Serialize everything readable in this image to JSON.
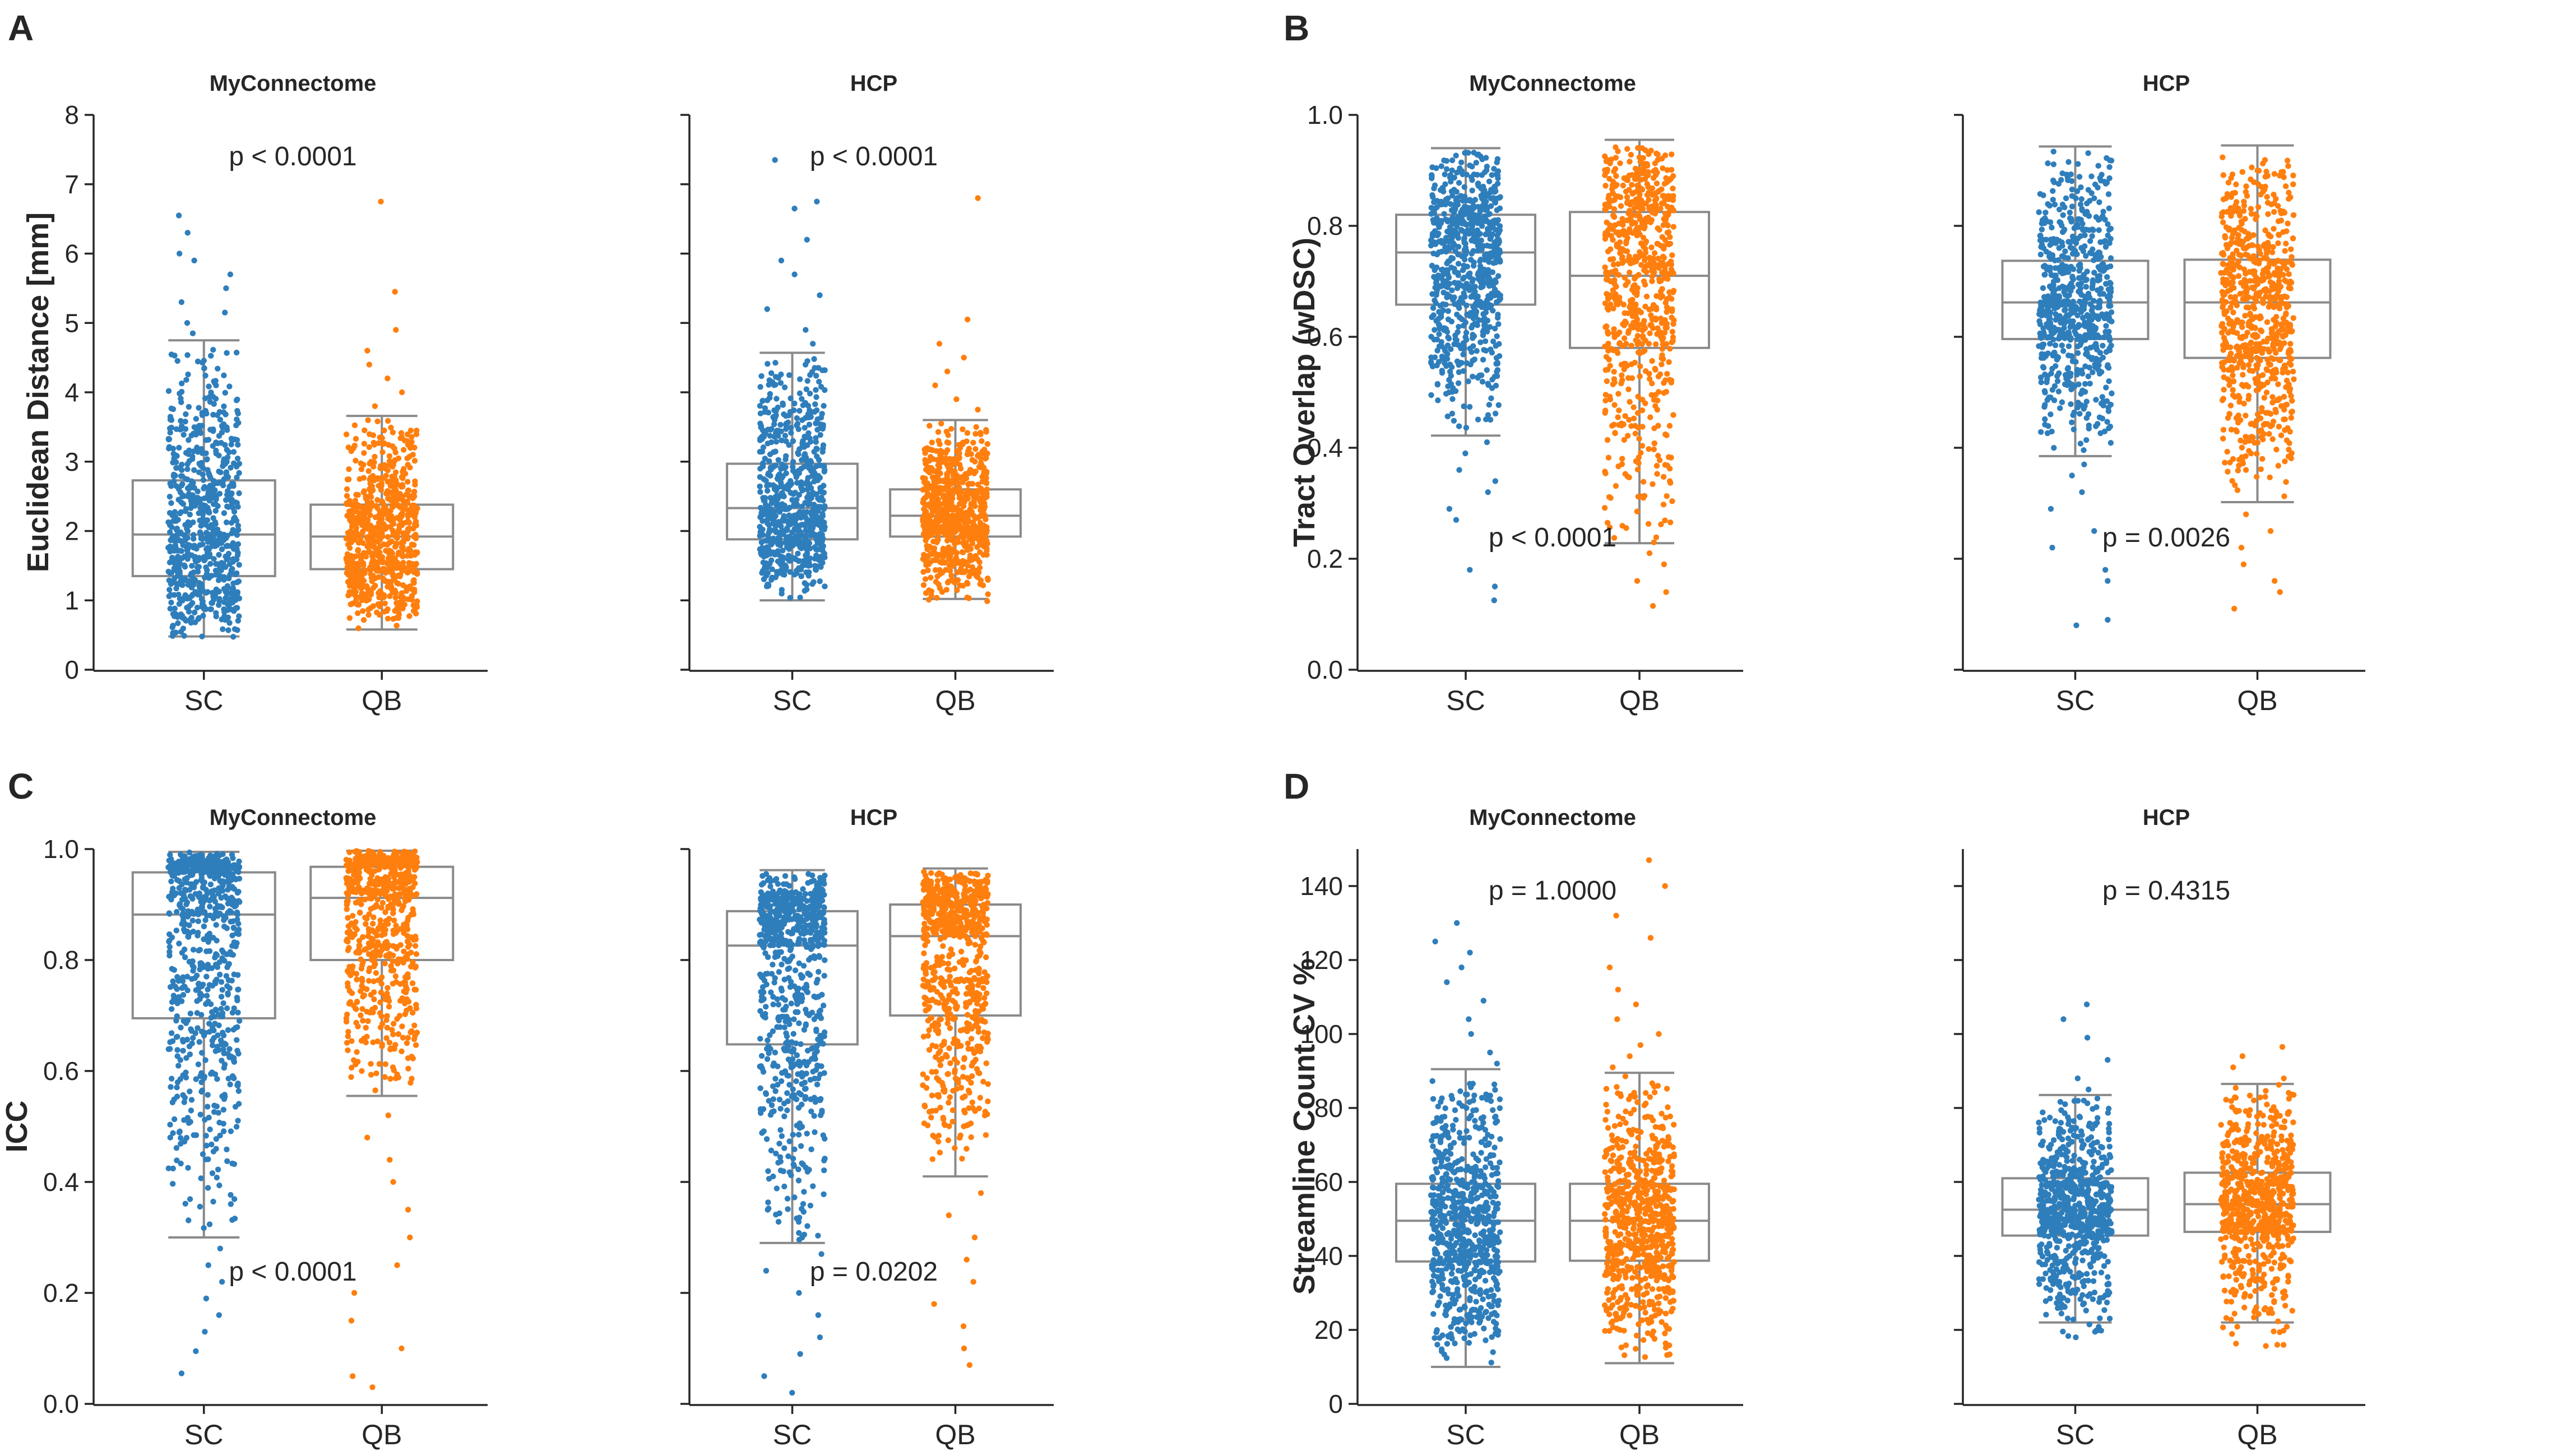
{
  "colors": {
    "SC": "#2f7ebc",
    "QB": "#ff7f0e",
    "box": "#8a8a8a",
    "axis": "#262626"
  },
  "chart_data": [
    {
      "type": "box",
      "panel_label": "A",
      "ylabel": "Euclidean Distance [mm]",
      "ylim": [
        0,
        8
      ],
      "yticks": [
        0,
        1,
        2,
        3,
        4,
        5,
        6,
        7,
        8
      ],
      "categories": [
        "SC",
        "QB"
      ],
      "subplots": [
        {
          "title": "MyConnectome",
          "pvalue": "p < 0.0001",
          "pvalue_pos": "top",
          "series": [
            {
              "name": "SC",
              "q1": 1.35,
              "median": 1.95,
              "q3": 2.73,
              "whisker_low": 0.48,
              "whisker_high": 4.75,
              "points_low": 0.45,
              "points_high": 4.75,
              "outliers": [
                4.85,
                5.0,
                5.15,
                5.3,
                5.5,
                5.7,
                5.9,
                6.0,
                6.3,
                6.55
              ]
            },
            {
              "name": "QB",
              "q1": 1.45,
              "median": 1.92,
              "q3": 2.38,
              "whisker_low": 0.58,
              "whisker_high": 3.66,
              "points_low": 0.56,
              "points_high": 3.66,
              "outliers": [
                3.8,
                4.0,
                4.2,
                4.4,
                4.6,
                4.9,
                5.45,
                6.75
              ]
            }
          ]
        },
        {
          "title": "HCP",
          "pvalue": "p < 0.0001",
          "pvalue_pos": "top",
          "series": [
            {
              "name": "SC",
              "q1": 1.88,
              "median": 2.33,
              "q3": 2.97,
              "whisker_low": 1.0,
              "whisker_high": 4.57,
              "points_low": 1.0,
              "points_high": 4.57,
              "outliers": [
                4.7,
                4.9,
                5.2,
                5.4,
                5.7,
                5.9,
                6.2,
                6.65,
                6.75,
                7.35
              ]
            },
            {
              "name": "QB",
              "q1": 1.92,
              "median": 2.22,
              "q3": 2.6,
              "whisker_low": 1.02,
              "whisker_high": 3.6,
              "points_low": 0.9,
              "points_high": 3.6,
              "outliers": [
                3.75,
                3.9,
                4.1,
                4.3,
                4.5,
                4.7,
                5.05,
                6.8
              ]
            }
          ]
        }
      ]
    },
    {
      "type": "box",
      "panel_label": "B",
      "ylabel": "Tract Overlap (wDSC)",
      "ylim": [
        0,
        1
      ],
      "yticks": [
        0.0,
        0.2,
        0.4,
        0.6,
        0.8,
        1.0
      ],
      "ytick_labels": [
        "0.0",
        "0.2",
        "0.4",
        "0.6",
        "0.8",
        "1.0"
      ],
      "categories": [
        "SC",
        "QB"
      ],
      "subplots": [
        {
          "title": "MyConnectome",
          "pvalue": "p < 0.0001",
          "pvalue_pos": "bottom",
          "series": [
            {
              "name": "SC",
              "q1": 0.658,
              "median": 0.752,
              "q3": 0.82,
              "whisker_low": 0.422,
              "whisker_high": 0.94,
              "points_low": 0.42,
              "points_high": 0.94,
              "outliers": [
                0.41,
                0.39,
                0.36,
                0.34,
                0.32,
                0.29,
                0.27,
                0.18,
                0.15,
                0.125
              ]
            },
            {
              "name": "QB",
              "q1": 0.58,
              "median": 0.71,
              "q3": 0.825,
              "whisker_low": 0.228,
              "whisker_high": 0.955,
              "points_low": 0.228,
              "points_high": 0.955,
              "outliers": [
                0.21,
                0.19,
                0.16,
                0.14,
                0.115
              ]
            }
          ]
        },
        {
          "title": "HCP",
          "pvalue": "p = 0.0026",
          "pvalue_pos": "bottom",
          "series": [
            {
              "name": "SC",
              "q1": 0.596,
              "median": 0.662,
              "q3": 0.737,
              "whisker_low": 0.385,
              "whisker_high": 0.943,
              "points_low": 0.385,
              "points_high": 0.943,
              "outliers": [
                0.37,
                0.35,
                0.32,
                0.29,
                0.25,
                0.22,
                0.18,
                0.16,
                0.09,
                0.08
              ]
            },
            {
              "name": "QB",
              "q1": 0.562,
              "median": 0.662,
              "q3": 0.739,
              "whisker_low": 0.302,
              "whisker_high": 0.945,
              "points_low": 0.302,
              "points_high": 0.945,
              "outliers": [
                0.28,
                0.25,
                0.22,
                0.19,
                0.16,
                0.14,
                0.11
              ]
            }
          ]
        }
      ]
    },
    {
      "type": "box",
      "panel_label": "C",
      "ylabel": "ICC",
      "ylim": [
        0,
        1
      ],
      "yticks": [
        0.0,
        0.2,
        0.4,
        0.6,
        0.8,
        1.0
      ],
      "ytick_labels": [
        "0.0",
        "0.2",
        "0.4",
        "0.6",
        "0.8",
        "1.0"
      ],
      "categories": [
        "SC",
        "QB"
      ],
      "subplots": [
        {
          "title": "MyConnectome",
          "pvalue": "p < 0.0001",
          "pvalue_pos": "bottom",
          "series": [
            {
              "name": "SC",
              "q1": 0.695,
              "median": 0.882,
              "q3": 0.958,
              "whisker_low": 0.3,
              "whisker_high": 0.995,
              "points_low": 0.3,
              "points_high": 0.995,
              "outliers": [
                0.28,
                0.25,
                0.22,
                0.19,
                0.16,
                0.13,
                0.095,
                0.055
              ]
            },
            {
              "name": "QB",
              "q1": 0.8,
              "median": 0.912,
              "q3": 0.968,
              "whisker_low": 0.555,
              "whisker_high": 0.997,
              "points_low": 0.555,
              "points_high": 0.997,
              "outliers": [
                0.52,
                0.48,
                0.44,
                0.4,
                0.35,
                0.3,
                0.25,
                0.2,
                0.15,
                0.1,
                0.05,
                0.03
              ]
            }
          ]
        },
        {
          "title": "HCP",
          "pvalue": "p = 0.0202",
          "pvalue_pos": "bottom",
          "series": [
            {
              "name": "SC",
              "q1": 0.648,
              "median": 0.826,
              "q3": 0.888,
              "whisker_low": 0.29,
              "whisker_high": 0.962,
              "points_low": 0.29,
              "points_high": 0.962,
              "outliers": [
                0.27,
                0.24,
                0.2,
                0.16,
                0.12,
                0.09,
                0.05,
                0.02
              ]
            },
            {
              "name": "QB",
              "q1": 0.7,
              "median": 0.843,
              "q3": 0.9,
              "whisker_low": 0.41,
              "whisker_high": 0.965,
              "points_low": 0.41,
              "points_high": 0.965,
              "outliers": [
                0.38,
                0.34,
                0.3,
                0.26,
                0.22,
                0.18,
                0.14,
                0.1,
                0.07
              ]
            }
          ]
        }
      ]
    },
    {
      "type": "box",
      "panel_label": "D",
      "ylabel": "Streamline Count CV %",
      "ylim": [
        0,
        150
      ],
      "yticks": [
        0,
        20,
        40,
        60,
        80,
        100,
        120,
        140
      ],
      "categories": [
        "SC",
        "QB"
      ],
      "subplots": [
        {
          "title": "MyConnectome",
          "pvalue": "p = 1.0000",
          "pvalue_pos": "top",
          "series": [
            {
              "name": "SC",
              "q1": 38.5,
              "median": 49.5,
              "q3": 59.5,
              "whisker_low": 10,
              "whisker_high": 90.5,
              "points_low": 10,
              "points_high": 90.5,
              "outliers": [
                92,
                95,
                100,
                104,
                109,
                114,
                118,
                122,
                125,
                130
              ]
            },
            {
              "name": "QB",
              "q1": 38.7,
              "median": 49.5,
              "q3": 59.5,
              "whisker_low": 11,
              "whisker_high": 89.5,
              "points_low": 11,
              "points_high": 89.5,
              "outliers": [
                91,
                94,
                97,
                100,
                104,
                108,
                112,
                118,
                126,
                132,
                140,
                147
              ]
            }
          ]
        },
        {
          "title": "HCP",
          "pvalue": "p = 0.4315",
          "pvalue_pos": "top",
          "series": [
            {
              "name": "SC",
              "q1": 45.5,
              "median": 52.5,
              "q3": 61,
              "whisker_low": 22,
              "whisker_high": 83.5,
              "points_low": 16,
              "points_high": 83.5,
              "outliers": [
                85,
                88,
                93,
                99,
                104,
                108
              ]
            },
            {
              "name": "QB",
              "q1": 46.5,
              "median": 54,
              "q3": 62.5,
              "whisker_low": 22,
              "whisker_high": 86.5,
              "points_low": 14,
              "points_high": 86.5,
              "outliers": [
                88,
                91,
                94,
                96.5
              ]
            }
          ]
        }
      ]
    }
  ]
}
